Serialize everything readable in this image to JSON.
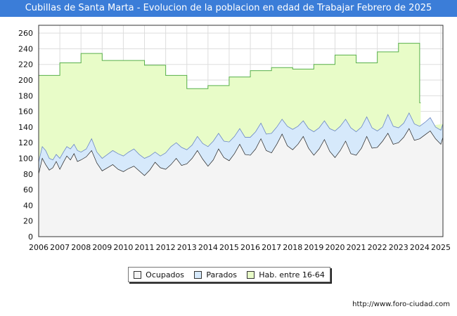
{
  "chart_data": {
    "type": "area",
    "title": "Cubillas de Santa Marta - Evolucion de la poblacion en edad de Trabajar Febrero de 2025",
    "x_tick_labels": [
      "2006",
      "2007",
      "2008",
      "2009",
      "2010",
      "2011",
      "2012",
      "2013",
      "2014",
      "2015",
      "2016",
      "2017",
      "2018",
      "2019",
      "2020",
      "2021",
      "2022",
      "2023",
      "2024",
      "2025"
    ],
    "y_tick_labels": [
      "0",
      "20",
      "40",
      "60",
      "80",
      "100",
      "120",
      "140",
      "160",
      "180",
      "200",
      "220",
      "240",
      "260"
    ],
    "ylim": [
      0,
      270
    ],
    "xlim": [
      2006,
      2025.1
    ],
    "grid": true,
    "legend_position": "bottom",
    "colors": {
      "ocupados_fill": "#f4f4f4",
      "parados_fill": "#d6e9fb",
      "hab_fill": "#e8fcc8",
      "hab_line": "#58b04a",
      "parados_line": "#6a86c4",
      "ocupados_line": "#222222"
    },
    "series": [
      {
        "name": "Hab. entre 16-64",
        "x": [
          2006.0,
          2007.0,
          2008.0,
          2009.0,
          2010.0,
          2011.0,
          2012.0,
          2013.0,
          2014.0,
          2015.0,
          2016.0,
          2017.0,
          2018.0,
          2019.0,
          2020.0,
          2021.0,
          2022.0,
          2023.0,
          2024.0
        ],
        "values": [
          206,
          222,
          234,
          225,
          225,
          219,
          206,
          189,
          193,
          204,
          212,
          216,
          214,
          220,
          232,
          222,
          236,
          247,
          171
        ]
      },
      {
        "name": "Parados",
        "x": [
          2006.0,
          2006.17,
          2006.33,
          2006.5,
          2006.67,
          2006.83,
          2007.0,
          2007.17,
          2007.33,
          2007.5,
          2007.67,
          2007.83,
          2008.0,
          2008.25,
          2008.5,
          2008.75,
          2009.0,
          2009.25,
          2009.5,
          2009.75,
          2010.0,
          2010.25,
          2010.5,
          2010.75,
          2011.0,
          2011.25,
          2011.5,
          2011.75,
          2012.0,
          2012.25,
          2012.5,
          2012.75,
          2013.0,
          2013.25,
          2013.5,
          2013.75,
          2014.0,
          2014.25,
          2014.5,
          2014.75,
          2015.0,
          2015.25,
          2015.5,
          2015.75,
          2016.0,
          2016.25,
          2016.5,
          2016.75,
          2017.0,
          2017.25,
          2017.5,
          2017.75,
          2018.0,
          2018.25,
          2018.5,
          2018.75,
          2019.0,
          2019.25,
          2019.5,
          2019.75,
          2020.0,
          2020.25,
          2020.5,
          2020.75,
          2021.0,
          2021.25,
          2021.5,
          2021.75,
          2022.0,
          2022.25,
          2022.5,
          2022.75,
          2023.0,
          2023.25,
          2023.5,
          2023.75,
          2024.0,
          2024.25,
          2024.5,
          2024.75,
          2025.0,
          2025.1
        ],
        "values": [
          95,
          115,
          110,
          100,
          98,
          105,
          100,
          108,
          115,
          112,
          118,
          110,
          108,
          112,
          125,
          108,
          100,
          105,
          110,
          106,
          103,
          108,
          112,
          105,
          100,
          103,
          108,
          103,
          107,
          115,
          120,
          114,
          111,
          117,
          128,
          119,
          115,
          122,
          132,
          122,
          121,
          128,
          138,
          127,
          127,
          134,
          145,
          131,
          132,
          140,
          150,
          141,
          137,
          141,
          148,
          138,
          134,
          139,
          148,
          138,
          135,
          141,
          150,
          139,
          134,
          140,
          153,
          139,
          135,
          140,
          156,
          141,
          139,
          145,
          158,
          144,
          141,
          146,
          152,
          140,
          136,
          144
        ]
      },
      {
        "name": "Ocupados",
        "x": [
          2006.0,
          2006.17,
          2006.33,
          2006.5,
          2006.67,
          2006.83,
          2007.0,
          2007.17,
          2007.33,
          2007.5,
          2007.67,
          2007.83,
          2008.0,
          2008.25,
          2008.5,
          2008.75,
          2009.0,
          2009.25,
          2009.5,
          2009.75,
          2010.0,
          2010.25,
          2010.5,
          2010.75,
          2011.0,
          2011.25,
          2011.5,
          2011.75,
          2012.0,
          2012.25,
          2012.5,
          2012.75,
          2013.0,
          2013.25,
          2013.5,
          2013.75,
          2014.0,
          2014.25,
          2014.5,
          2014.75,
          2015.0,
          2015.25,
          2015.5,
          2015.75,
          2016.0,
          2016.25,
          2016.5,
          2016.75,
          2017.0,
          2017.25,
          2017.5,
          2017.75,
          2018.0,
          2018.25,
          2018.5,
          2018.75,
          2019.0,
          2019.25,
          2019.5,
          2019.75,
          2020.0,
          2020.25,
          2020.5,
          2020.75,
          2021.0,
          2021.25,
          2021.5,
          2021.75,
          2022.0,
          2022.25,
          2022.5,
          2022.75,
          2023.0,
          2023.25,
          2023.5,
          2023.75,
          2024.0,
          2024.25,
          2024.5,
          2024.75,
          2025.0,
          2025.1
        ],
        "values": [
          80,
          100,
          92,
          85,
          88,
          96,
          86,
          95,
          103,
          98,
          106,
          96,
          98,
          102,
          110,
          94,
          84,
          88,
          92,
          86,
          83,
          87,
          90,
          84,
          78,
          85,
          95,
          88,
          86,
          92,
          100,
          91,
          93,
          100,
          110,
          99,
          90,
          98,
          112,
          101,
          97,
          106,
          118,
          105,
          104,
          112,
          125,
          110,
          107,
          118,
          131,
          116,
          111,
          118,
          128,
          113,
          104,
          112,
          124,
          109,
          101,
          110,
          122,
          106,
          104,
          113,
          128,
          113,
          114,
          122,
          132,
          118,
          120,
          127,
          138,
          123,
          125,
          130,
          135,
          125,
          118,
          127
        ]
      }
    ]
  },
  "legend": {
    "items": [
      {
        "label": "Ocupados"
      },
      {
        "label": "Parados"
      },
      {
        "label": "Hab. entre 16-64"
      }
    ]
  },
  "footer": {
    "url": "http://www.foro-ciudad.com"
  }
}
